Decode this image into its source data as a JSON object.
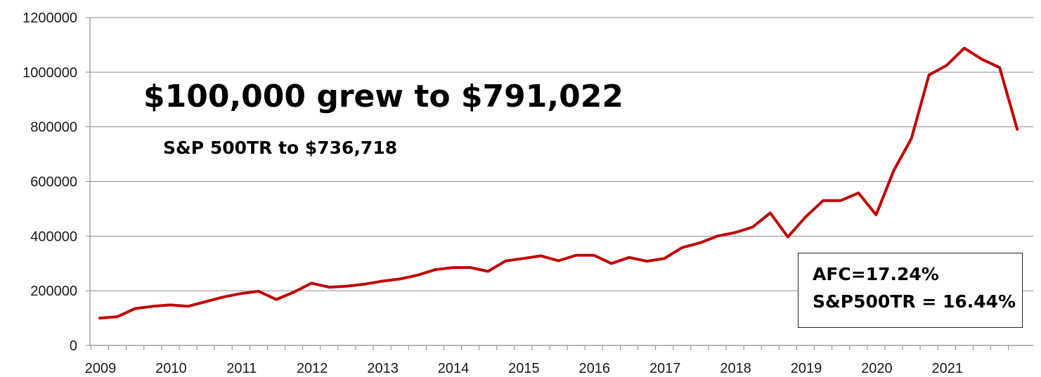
{
  "chart_data": {
    "type": "line",
    "ylim": [
      0,
      1200000
    ],
    "yticks": [
      "0",
      "200000",
      "400000",
      "600000",
      "800000",
      "1000000",
      "1200000"
    ],
    "xlabels": [
      "2009",
      "2010",
      "2011",
      "2012",
      "2013",
      "2014",
      "2015",
      "2016",
      "2017",
      "2018",
      "2019",
      "2020",
      "2021"
    ],
    "grid": "horizontal",
    "color": "#c00000",
    "series": [
      {
        "values": [
          100000,
          105000,
          135000,
          143000,
          148000,
          143000,
          160000,
          177000,
          190000,
          198000,
          168000,
          195000,
          228000,
          213000,
          217000,
          224000,
          235000,
          243000,
          257000,
          277000,
          285000,
          285000,
          271000,
          309000,
          318000,
          328000,
          310000,
          330000,
          330000,
          300000,
          322000,
          308000,
          318000,
          358000,
          375000,
          400000,
          413000,
          433000,
          485000,
          397000,
          470000,
          530000,
          530000,
          558000,
          478000,
          640000,
          757000,
          990000,
          1025000,
          1088000,
          1047000,
          1017000,
          791000
        ]
      }
    ]
  },
  "annotations": {
    "headline": "$100,000 grew to $791,022",
    "subhead": "S&P 500TR to $736,718",
    "stat_afc": "AFC=17.24%",
    "stat_sp": "S&P500TR = 16.44%"
  }
}
